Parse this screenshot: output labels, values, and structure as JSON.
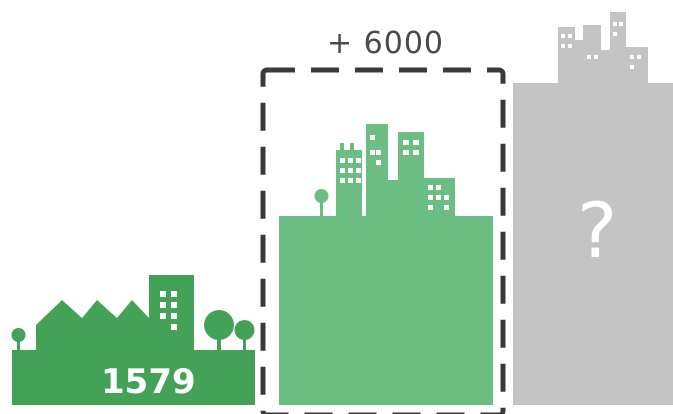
{
  "labels": {
    "increase": "+ 6000",
    "base_value": "1579",
    "unknown": "?"
  },
  "colors": {
    "dark_green": "#44A158",
    "light_green": "#6CBD82",
    "gray": "#C4C4C4",
    "dash": "#3A3A3A",
    "text_dark": "#4A4A4A",
    "text_light": "#FFFFFF"
  }
}
